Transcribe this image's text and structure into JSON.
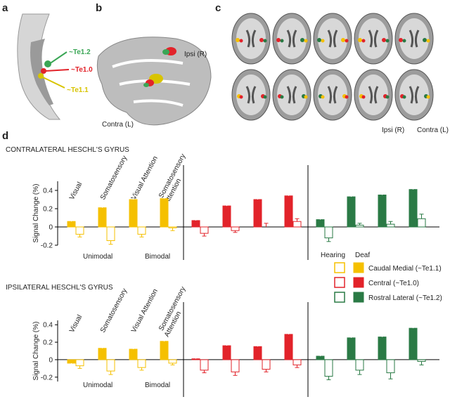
{
  "panel_labels": [
    "a",
    "b",
    "c",
    "d"
  ],
  "panel_a": {
    "labels": [
      {
        "text": "~Te1.2",
        "color": "#3aa655"
      },
      {
        "text": "~Te1.0",
        "color": "#e2232a"
      },
      {
        "text": "~Te1.1",
        "color": "#d8c400"
      }
    ]
  },
  "panel_b": {
    "labels": [
      "Ipsi (R)",
      "Contra (L)"
    ]
  },
  "panel_c": {
    "labels": [
      "Ipsi (R)",
      "Contra (L)"
    ]
  },
  "legend": {
    "hearing": "Hearing",
    "deaf": "Deaf",
    "hearing_fill": "#ffffff",
    "regions": [
      {
        "name": "Caudal Medial (~Te1.1)",
        "color": "#f5c000"
      },
      {
        "name": "Central (~Te1.0)",
        "color": "#e2232a"
      },
      {
        "name": "Rostral Lateral (~Te1.2)",
        "color": "#2a7a45"
      }
    ]
  },
  "chart_data": [
    {
      "type": "bar",
      "title": "CONTRALATERAL HESCHL'S GYRUS",
      "y_label": "Signal Change (%)",
      "categories": [
        "Visual",
        "Somatosensory",
        "Visual Attention",
        "Somatosensory Attention"
      ],
      "groups": [
        "Unimodal",
        "Bimodal"
      ],
      "ylim": [
        -0.2,
        0.5
      ],
      "yticks": [
        -0.2,
        0,
        0.2,
        0.4
      ],
      "regions": [
        {
          "deaf": {
            "values": [
              0.06,
              0.21,
              0.3,
              0.31
            ],
            "errors": [
              0.04,
              0.05,
              0.04,
              0.04
            ]
          },
          "hearing": {
            "values": [
              -0.08,
              -0.15,
              -0.08,
              -0.01
            ],
            "errors": [
              0.03,
              0.04,
              0.03,
              0.03
            ]
          }
        },
        {
          "deaf": {
            "values": [
              0.07,
              0.23,
              0.3,
              0.34
            ],
            "errors": [
              0.04,
              0.03,
              0.06,
              0.05
            ]
          },
          "hearing": {
            "values": [
              -0.07,
              -0.04,
              0.0,
              0.06
            ],
            "errors": [
              0.03,
              0.02,
              0.04,
              0.03
            ]
          }
        },
        {
          "deaf": {
            "values": [
              0.08,
              0.33,
              0.35,
              0.41
            ],
            "errors": [
              0.05,
              0.06,
              0.07,
              0.07
            ]
          },
          "hearing": {
            "values": [
              -0.12,
              0.02,
              0.03,
              0.09
            ],
            "errors": [
              0.04,
              0.02,
              0.03,
              0.05
            ]
          }
        }
      ]
    },
    {
      "type": "bar",
      "title": "IPSILATERAL HESCHL'S GYRUS",
      "y_label": "Signal Change (%)",
      "categories": [
        "Visual",
        "Somatosensory",
        "Visual Attention",
        "Somatosensory Attention"
      ],
      "groups": [
        "Unimodal",
        "Bimodal"
      ],
      "ylim": [
        -0.25,
        0.45
      ],
      "yticks": [
        -0.2,
        0,
        0.2,
        0.4
      ],
      "regions": [
        {
          "deaf": {
            "values": [
              -0.04,
              0.13,
              0.12,
              0.21
            ],
            "errors": [
              0.03,
              0.04,
              0.05,
              0.02
            ]
          },
          "hearing": {
            "values": [
              -0.07,
              -0.13,
              -0.09,
              -0.04
            ],
            "errors": [
              0.03,
              0.04,
              0.03,
              0.02
            ]
          }
        },
        {
          "deaf": {
            "values": [
              0.01,
              0.16,
              0.15,
              0.29
            ],
            "errors": [
              0.05,
              0.04,
              0.03,
              0.04
            ]
          },
          "hearing": {
            "values": [
              -0.12,
              -0.14,
              -0.11,
              -0.06
            ],
            "errors": [
              0.03,
              0.04,
              0.03,
              0.03
            ]
          }
        },
        {
          "deaf": {
            "values": [
              0.04,
              0.25,
              0.26,
              0.36
            ],
            "errors": [
              0.04,
              0.07,
              0.08,
              0.07
            ]
          },
          "hearing": {
            "values": [
              -0.19,
              -0.12,
              -0.15,
              -0.02
            ],
            "errors": [
              0.04,
              0.05,
              0.07,
              0.04
            ]
          }
        }
      ]
    }
  ]
}
